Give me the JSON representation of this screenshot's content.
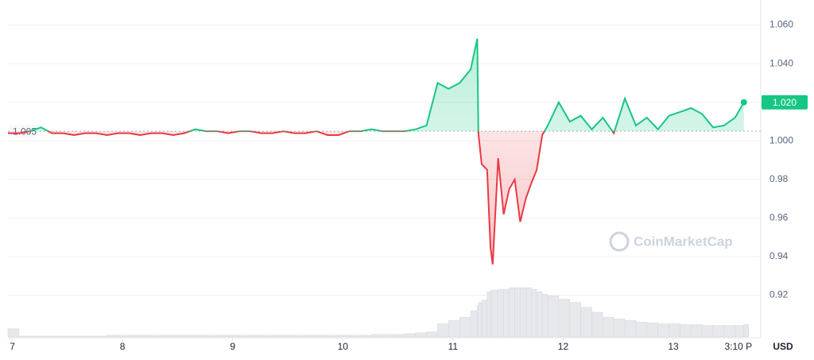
{
  "chart_data": {
    "type": "line",
    "x": [
      6.96,
      7.06,
      7.16,
      7.26,
      7.36,
      7.46,
      7.56,
      7.66,
      7.76,
      7.86,
      7.96,
      8.06,
      8.16,
      8.26,
      8.36,
      8.46,
      8.56,
      8.66,
      8.76,
      8.86,
      8.96,
      9.06,
      9.16,
      9.26,
      9.36,
      9.46,
      9.56,
      9.66,
      9.76,
      9.86,
      9.96,
      10.06,
      10.16,
      10.26,
      10.36,
      10.46,
      10.56,
      10.66,
      10.76,
      10.86,
      10.96,
      11.06,
      11.16,
      11.22,
      11.23,
      11.26,
      11.31,
      11.34,
      11.36,
      11.41,
      11.46,
      11.51,
      11.56,
      11.61,
      11.66,
      11.71,
      11.76,
      11.81,
      11.86,
      11.96,
      12.06,
      12.16,
      12.26,
      12.36,
      12.46,
      12.56,
      12.66,
      12.76,
      12.86,
      12.96,
      13.06,
      13.16,
      13.26,
      13.36,
      13.46,
      13.56,
      13.64
    ],
    "values": [
      1.004,
      1.004,
      1.005,
      1.007,
      1.004,
      1.004,
      1.003,
      1.004,
      1.004,
      1.003,
      1.004,
      1.004,
      1.003,
      1.004,
      1.004,
      1.003,
      1.004,
      1.006,
      1.005,
      1.005,
      1.004,
      1.005,
      1.005,
      1.004,
      1.004,
      1.005,
      1.004,
      1.004,
      1.005,
      1.003,
      1.003,
      1.005,
      1.005,
      1.006,
      1.005,
      1.005,
      1.005,
      1.006,
      1.008,
      1.03,
      1.027,
      1.03,
      1.037,
      1.053,
      1.004,
      0.988,
      0.985,
      0.945,
      0.936,
      0.991,
      0.962,
      0.975,
      0.98,
      0.958,
      0.97,
      0.978,
      0.985,
      1.003,
      1.008,
      1.02,
      1.01,
      1.013,
      1.006,
      1.012,
      1.004,
      1.022,
      1.008,
      1.012,
      1.006,
      1.013,
      1.015,
      1.017,
      1.014,
      1.007,
      1.008,
      1.012,
      1.02
    ],
    "volume": [
      10,
      1,
      1,
      1,
      1,
      1,
      1,
      1,
      1,
      2,
      2,
      2,
      2,
      2,
      2,
      2,
      2,
      2,
      2,
      2,
      2,
      2,
      2,
      2,
      2,
      2,
      2,
      2,
      2,
      2,
      2,
      2,
      2,
      3,
      3,
      3,
      4,
      5,
      6,
      16,
      20,
      24,
      32,
      38,
      42,
      45,
      55,
      57,
      57,
      58,
      58,
      60,
      60,
      60,
      60,
      58,
      55,
      52,
      50,
      46,
      42,
      36,
      30,
      24,
      22,
      20,
      18,
      17,
      16,
      16,
      15,
      15,
      14,
      14,
      14,
      14,
      15
    ],
    "baseline": 1.005,
    "current_price": {
      "value": 1.02,
      "label": "1.020"
    },
    "up_color": "#16c784",
    "down_color": "#ea3943",
    "volume_color": "#e6e8ec",
    "xlim": [
      6.96,
      13.75
    ],
    "xticks": [
      7,
      8,
      9,
      10,
      11,
      12,
      13,
      {
        "value": 13.59,
        "label": "3:10 P"
      }
    ],
    "ylim": [
      0.898,
      1.073
    ],
    "yticks": [
      0.92,
      0.94,
      0.96,
      0.98,
      {
        "value": 1.0,
        "label": "1.000"
      },
      {
        "value": 1.02,
        "label": "1.020"
      },
      {
        "value": 1.04,
        "label": "1.040"
      },
      {
        "value": 1.06,
        "label": "1.060"
      }
    ],
    "grid": true,
    "currency": "USD",
    "watermark": "CoinMarketCap"
  }
}
